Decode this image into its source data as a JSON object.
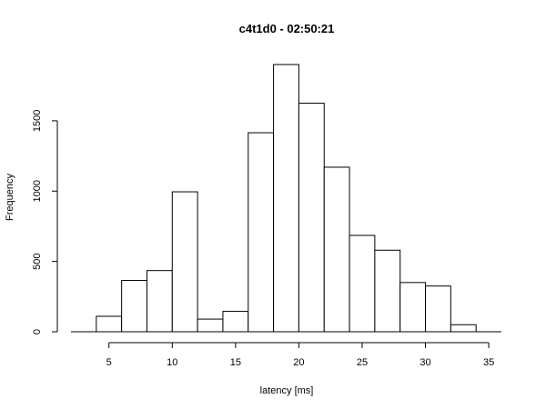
{
  "chart_data": {
    "type": "bar",
    "title": "c4t1d0 - 02:50:21",
    "xlabel": "latency [ms]",
    "ylabel": "Frequency",
    "bins": [
      {
        "x0": 2,
        "x1": 4,
        "value": 0
      },
      {
        "x0": 4,
        "x1": 6,
        "value": 110
      },
      {
        "x0": 6,
        "x1": 8,
        "value": 365
      },
      {
        "x0": 8,
        "x1": 10,
        "value": 435
      },
      {
        "x0": 10,
        "x1": 12,
        "value": 995
      },
      {
        "x0": 12,
        "x1": 14,
        "value": 90
      },
      {
        "x0": 14,
        "x1": 16,
        "value": 145
      },
      {
        "x0": 16,
        "x1": 18,
        "value": 1415
      },
      {
        "x0": 18,
        "x1": 20,
        "value": 1900
      },
      {
        "x0": 20,
        "x1": 22,
        "value": 1625
      },
      {
        "x0": 22,
        "x1": 24,
        "value": 1170
      },
      {
        "x0": 24,
        "x1": 26,
        "value": 685
      },
      {
        "x0": 26,
        "x1": 28,
        "value": 580
      },
      {
        "x0": 28,
        "x1": 30,
        "value": 350
      },
      {
        "x0": 30,
        "x1": 32,
        "value": 325
      },
      {
        "x0": 32,
        "x1": 34,
        "value": 50
      },
      {
        "x0": 34,
        "x1": 36,
        "value": 3
      }
    ],
    "xlim": [
      2,
      36
    ],
    "ylim": [
      0,
      1900
    ],
    "xticks": [
      5,
      10,
      15,
      20,
      25,
      30,
      35
    ],
    "yticks": [
      0,
      500,
      1000,
      1500
    ],
    "grid": false
  }
}
